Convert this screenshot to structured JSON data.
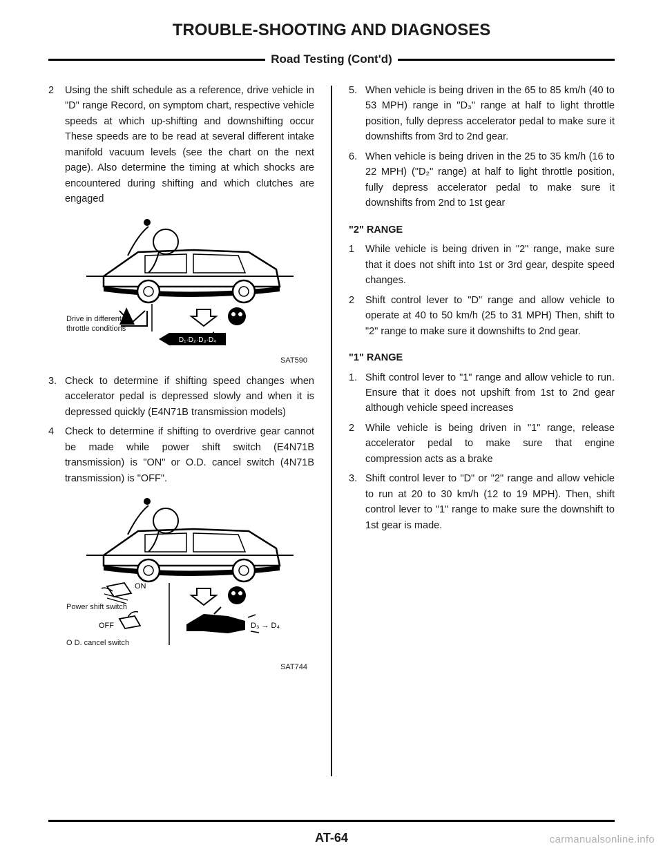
{
  "title": "TROUBLE-SHOOTING AND DIAGNOSES",
  "subtitle": "Road Testing (Cont'd)",
  "left": {
    "items": [
      {
        "num": "2",
        "text": "Using the shift schedule as a reference, drive vehicle in \"D\" range Record, on symptom chart, respective vehicle speeds at which up-shifting and downshifting occur These speeds are to be read at several different intake manifold vacuum levels (see the chart on the next page). Also determine the timing at which shocks are encountered during shifting and which clutches are engaged"
      },
      {
        "num": "3.",
        "text": "Check to determine if shifting speed changes when accelerator pedal is depressed slowly and when it is depressed quickly (E4N71B transmission models)"
      },
      {
        "num": "4",
        "text": "Check to determine if shifting to overdrive gear cannot be made while power shift switch (E4N71B transmission) is \"ON\" or O.D. cancel switch (4N71B transmission) is \"OFF\"."
      }
    ],
    "fig1_caption": "Drive in different\nthrottle conditions",
    "fig1_badge": "D₁·D₂·D₃·D₄",
    "fig1_label": "SAT590",
    "fig2_power": "Power shift switch",
    "fig2_on": "ON",
    "fig2_off": "OFF",
    "fig2_od": "O D. cancel switch",
    "fig2_d3d4": "D₃ → D₄",
    "fig2_label": "SAT744"
  },
  "right": {
    "items": [
      {
        "num": "5.",
        "text": "When vehicle is being driven in the 65 to 85 km/h (40 to 53 MPH) range in \"D₃\" range at half to light throttle position, fully depress accelerator pedal to make sure it downshifts from 3rd to 2nd gear."
      },
      {
        "num": "6.",
        "text": "When vehicle is being driven in the 25 to 35 km/h (16 to 22 MPH) (\"D₂\" range) at half to light throttle position, fully depress accelerator pedal to make sure it downshifts from 2nd to 1st gear"
      }
    ],
    "range2": {
      "head": "\"2\" RANGE",
      "items": [
        {
          "num": "1",
          "text": "While vehicle is being driven in \"2\" range, make sure that it does not shift into 1st or 3rd gear, despite speed changes."
        },
        {
          "num": "2",
          "text": "Shift control lever to \"D\" range and allow vehicle to operate at 40 to 50 km/h (25 to 31 MPH) Then, shift to \"2\" range to make sure it downshifts to 2nd gear."
        }
      ]
    },
    "range1": {
      "head": "\"1\" RANGE",
      "items": [
        {
          "num": "1.",
          "text": "Shift control lever to \"1\" range and allow vehicle to run. Ensure that it does not upshift from 1st to 2nd gear although vehicle speed increases"
        },
        {
          "num": "2",
          "text": "While vehicle is being driven in \"1\" range, release accelerator pedal to make sure that engine compression acts as a brake"
        },
        {
          "num": "3.",
          "text": "Shift control lever to \"D\" or \"2\" range and allow vehicle to run at 20 to 30 km/h (12 to 19 MPH). Then, shift control lever to \"1\" range to make sure the downshift to 1st gear is made."
        }
      ]
    }
  },
  "page": "AT-64",
  "watermark": "carmanualsonline.info"
}
